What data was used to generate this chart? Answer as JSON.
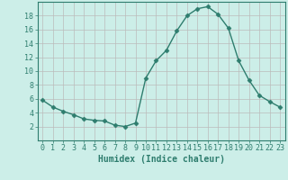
{
  "xlabel": "Humidex (Indice chaleur)",
  "ylabel": "",
  "x": [
    0,
    1,
    2,
    3,
    4,
    5,
    6,
    7,
    8,
    9,
    10,
    11,
    12,
    13,
    14,
    15,
    16,
    17,
    18,
    19,
    20,
    21,
    22,
    23
  ],
  "y": [
    5.8,
    4.8,
    4.2,
    3.7,
    3.1,
    2.9,
    2.8,
    2.2,
    2.0,
    2.5,
    9.0,
    11.5,
    13.0,
    15.8,
    18.0,
    19.0,
    19.3,
    18.2,
    16.2,
    11.5,
    8.7,
    6.5,
    5.6,
    4.8
  ],
  "line_color": "#2e7d6e",
  "marker": "D",
  "marker_size": 2.5,
  "bg_color": "#cceee8",
  "grid_color": "#bbbbbb",
  "tick_color": "#2e7d6e",
  "spine_color": "#2e7d6e",
  "ylim": [
    0,
    20
  ],
  "xlim": [
    -0.5,
    23.5
  ],
  "yticks": [
    2,
    4,
    6,
    8,
    10,
    12,
    14,
    16,
    18
  ],
  "xticks": [
    0,
    1,
    2,
    3,
    4,
    5,
    6,
    7,
    8,
    9,
    10,
    11,
    12,
    13,
    14,
    15,
    16,
    17,
    18,
    19,
    20,
    21,
    22,
    23
  ],
  "xlabel_fontsize": 7,
  "tick_fontsize": 6,
  "line_width": 1.0
}
